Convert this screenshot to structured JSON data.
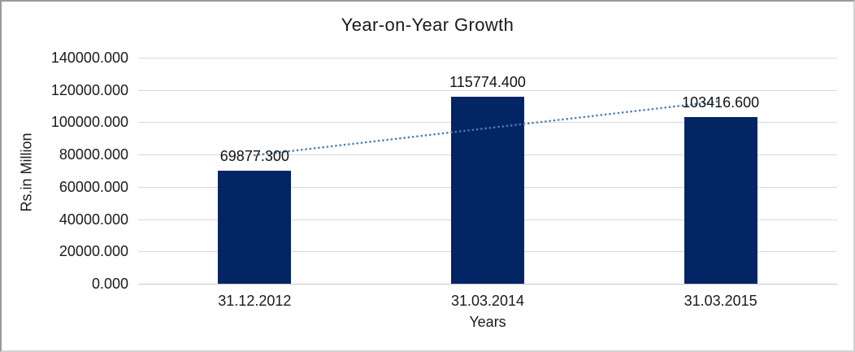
{
  "chart_data": {
    "type": "bar",
    "title": "Year-on-Year Growth",
    "xlabel": "Years",
    "ylabel": "Rs.in Million",
    "categories": [
      "31.12.2012",
      "31.03.2014",
      "31.03.2015"
    ],
    "values": [
      69877.3,
      115774.4,
      103416.6
    ],
    "value_labels": [
      "69877.300",
      "115774.400",
      "103416.600"
    ],
    "ylim": [
      0,
      140000
    ],
    "ytick_labels": [
      "0.000",
      "20000.000",
      "40000.000",
      "60000.000",
      "80000.000",
      "100000.000",
      "120000.000",
      "140000.000"
    ],
    "grid": true,
    "legend": false,
    "bar_color": "#032564",
    "gridline_color": "#d9d9d9",
    "trendline": {
      "type": "linear",
      "style": "dotted",
      "color": "#4a7ebb",
      "start_value": 79600,
      "end_value": 113100
    }
  }
}
